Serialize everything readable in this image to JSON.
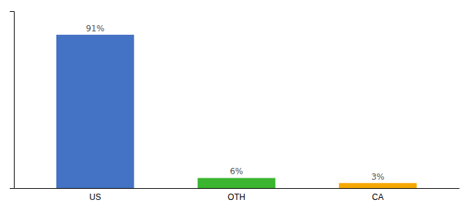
{
  "chart_data": {
    "type": "bar",
    "categories": [
      "US",
      "OTH",
      "CA"
    ],
    "values": [
      91,
      6,
      3
    ],
    "colors": [
      "#4472c4",
      "#3cb531",
      "#f5a800"
    ],
    "data_labels": true,
    "value_labels": [
      "91%",
      "6%",
      "3%"
    ],
    "ylim": [
      0,
      105
    ],
    "grid": false,
    "tick_labels": "x"
  }
}
